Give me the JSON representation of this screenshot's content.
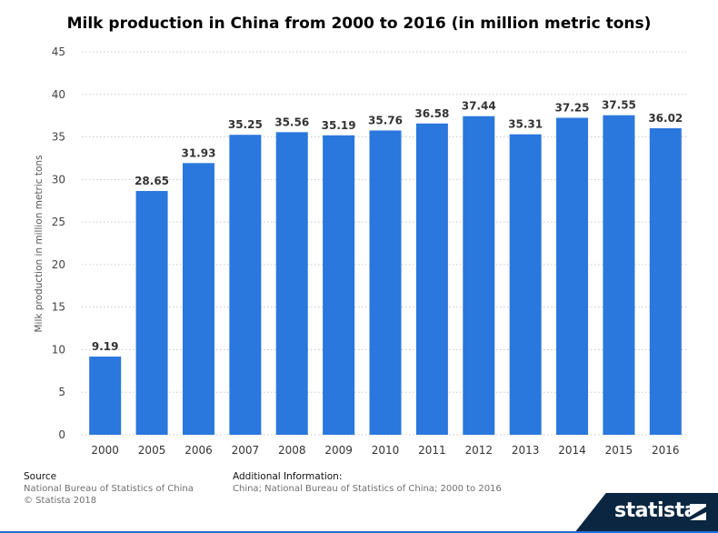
{
  "chart_data": {
    "type": "bar",
    "title": "Milk production in China from 2000 to 2016 (in million metric tons)",
    "xlabel": "",
    "ylabel": "Milk production in million metric tons",
    "categories": [
      "2000",
      "2005",
      "2006",
      "2007",
      "2008",
      "2009",
      "2010",
      "2011",
      "2012",
      "2013",
      "2014",
      "2015",
      "2016"
    ],
    "values": [
      9.19,
      28.65,
      31.93,
      35.25,
      35.56,
      35.19,
      35.76,
      36.58,
      37.44,
      35.31,
      37.25,
      37.55,
      36.02
    ],
    "value_labels": [
      "9.19",
      "28.65",
      "31.93",
      "35.25",
      "35.56",
      "35.19",
      "35.76",
      "36.58",
      "37.44",
      "35.31",
      "37.25",
      "37.55",
      "36.02"
    ],
    "ylim": [
      0,
      45
    ],
    "yticks": [
      "0",
      "5",
      "10",
      "15",
      "20",
      "25",
      "30",
      "35",
      "40",
      "45"
    ],
    "grid": true,
    "bar_color": "#2a77dd"
  },
  "footer": {
    "source_heading": "Source",
    "source_line1": "National Bureau of Statistics of China",
    "source_line2": "© Statista 2018",
    "info_heading": "Additional Information:",
    "info_line1": "China; National Bureau of Statistics of China; 2000 to 2016"
  },
  "logo": {
    "text": "statista",
    "background": "#0b2640"
  }
}
